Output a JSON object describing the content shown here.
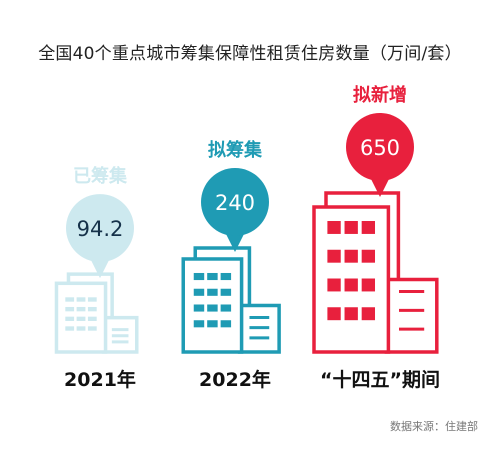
{
  "chart_data": {
    "type": "bar",
    "title": "全国40个重点城市筹集保障性租赁住房数量（万间/套）",
    "unit": "万间/套",
    "categories": [
      "2021年",
      "2022年",
      "“十四五”期间"
    ],
    "series": [
      {
        "values": [
          94.2,
          240,
          650
        ],
        "status_labels": [
          "已筹集",
          "拟筹集",
          "拟新增"
        ],
        "value_labels": [
          "94.2",
          "240",
          "650"
        ]
      }
    ],
    "colors": [
      "#cde9ef",
      "#1f9bb4",
      "#e8203d"
    ],
    "legend": "none",
    "grid": false,
    "source": "数据来源：住建部"
  }
}
